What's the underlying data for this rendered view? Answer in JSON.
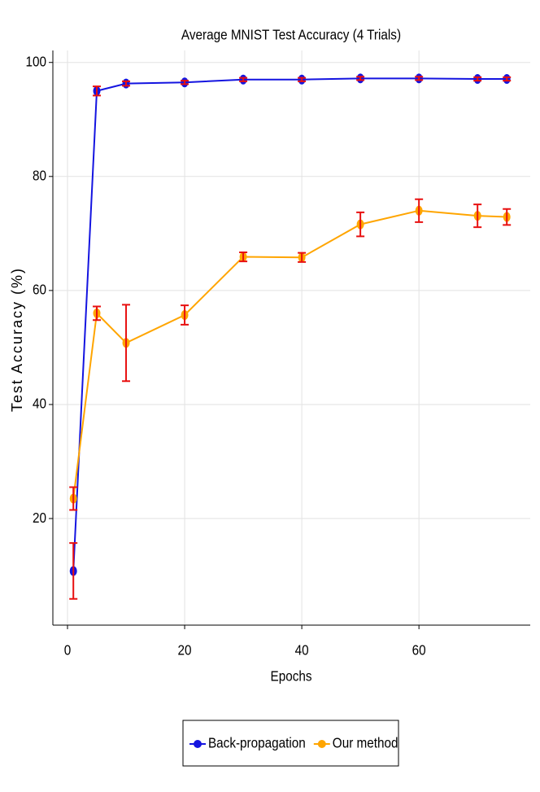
{
  "chart_data": {
    "type": "line",
    "title": "Average MNIST Test Accuracy (4 Trials)",
    "x_label": "Epochs",
    "y_label": "Test Accuracy (%)",
    "x": [
      1,
      5,
      10,
      20,
      30,
      40,
      50,
      60,
      70,
      75
    ],
    "series": [
      {
        "name": "Back-propagation",
        "color": "#1414e0",
        "values": [
          10.8,
          95.0,
          96.3,
          96.5,
          97.0,
          97.0,
          97.2,
          97.2,
          97.1,
          97.1
        ],
        "errors": [
          4.9,
          0.8,
          0.4,
          0.3,
          0.3,
          0.3,
          0.3,
          0.3,
          0.3,
          0.3
        ]
      },
      {
        "name": "Our method",
        "color": "#ffa500",
        "values": [
          23.5,
          56.0,
          50.8,
          55.7,
          65.9,
          65.8,
          71.6,
          74.0,
          73.1,
          72.9
        ],
        "errors": [
          2.0,
          1.2,
          6.7,
          1.7,
          0.8,
          0.8,
          2.1,
          2.0,
          2.0,
          1.4
        ]
      }
    ],
    "error_color": "#e81010",
    "xlim": [
      -2.5,
      79
    ],
    "ylim": [
      1.3,
      102.1
    ],
    "xticks": [
      0,
      20,
      40,
      60
    ],
    "yticks": [
      20,
      40,
      60,
      80,
      100
    ],
    "grid": true,
    "legend_position": "bottom"
  }
}
